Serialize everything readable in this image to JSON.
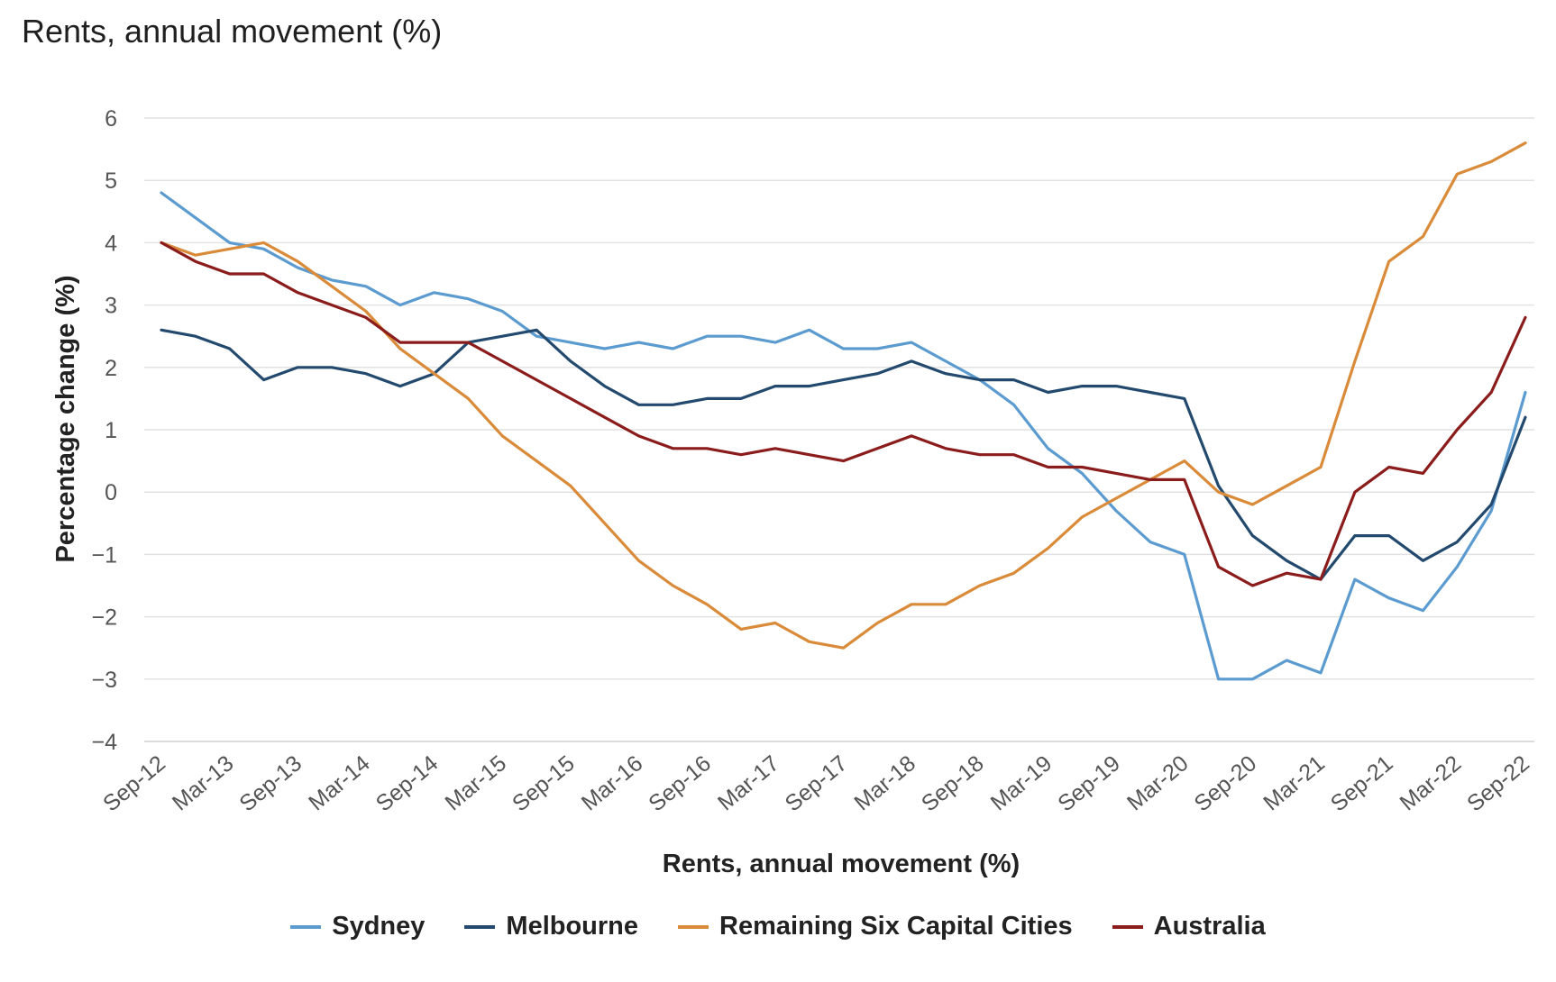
{
  "chart_data": {
    "type": "line",
    "title": "Rents, annual movement (%)",
    "xlabel": "Rents, annual movement (%)",
    "ylabel": "Percentage change (%)",
    "ylim": [
      -4,
      6
    ],
    "yticks": [
      6,
      5,
      4,
      3,
      2,
      1,
      0,
      -1,
      -2,
      -3,
      -4
    ],
    "ytick_labels": [
      "6",
      "5",
      "4",
      "3",
      "2",
      "1",
      "0",
      "−1",
      "−2",
      "−3",
      "−4"
    ],
    "x": [
      "Sep-12",
      "Dec-12",
      "Mar-13",
      "Jun-13",
      "Sep-13",
      "Dec-13",
      "Mar-14",
      "Jun-14",
      "Sep-14",
      "Dec-14",
      "Mar-15",
      "Jun-15",
      "Sep-15",
      "Dec-15",
      "Mar-16",
      "Jun-16",
      "Sep-16",
      "Dec-16",
      "Mar-17",
      "Jun-17",
      "Sep-17",
      "Dec-17",
      "Mar-18",
      "Jun-18",
      "Sep-18",
      "Dec-18",
      "Mar-19",
      "Jun-19",
      "Sep-19",
      "Dec-19",
      "Mar-20",
      "Jun-20",
      "Sep-20",
      "Dec-20",
      "Mar-21",
      "Jun-21",
      "Sep-21",
      "Dec-21",
      "Mar-22",
      "Jun-22",
      "Sep-22"
    ],
    "xtick_labels": [
      "Sep-12",
      "Mar-13",
      "Sep-13",
      "Mar-14",
      "Sep-14",
      "Mar-15",
      "Sep-15",
      "Mar-16",
      "Sep-16",
      "Mar-17",
      "Sep-17",
      "Mar-18",
      "Sep-18",
      "Mar-19",
      "Sep-19",
      "Mar-20",
      "Sep-20",
      "Mar-21",
      "Sep-21",
      "Mar-22",
      "Sep-22"
    ],
    "grid": true,
    "legend_position": "bottom",
    "series": [
      {
        "name": "Sydney",
        "color": "#5b9bd0",
        "values": [
          4.8,
          4.4,
          4.0,
          3.9,
          3.6,
          3.4,
          3.3,
          3.0,
          3.2,
          3.1,
          2.9,
          2.5,
          2.4,
          2.3,
          2.4,
          2.3,
          2.5,
          2.5,
          2.4,
          2.6,
          2.3,
          2.3,
          2.4,
          2.1,
          1.8,
          1.4,
          0.7,
          0.3,
          -0.3,
          -0.8,
          -1.0,
          -3.0,
          -3.0,
          -2.7,
          -2.9,
          -1.4,
          -1.7,
          -1.9,
          -1.2,
          -0.3,
          1.6
        ]
      },
      {
        "name": "Melbourne",
        "color": "#234a6e",
        "values": [
          2.6,
          2.5,
          2.3,
          1.8,
          2.0,
          2.0,
          1.9,
          1.7,
          1.9,
          2.4,
          2.5,
          2.6,
          2.1,
          1.7,
          1.4,
          1.4,
          1.5,
          1.5,
          1.7,
          1.7,
          1.8,
          1.9,
          2.1,
          1.9,
          1.8,
          1.8,
          1.6,
          1.7,
          1.7,
          1.6,
          1.5,
          0.1,
          -0.7,
          -1.1,
          -1.4,
          -0.7,
          -0.7,
          -1.1,
          -0.8,
          -0.2,
          1.2
        ]
      },
      {
        "name": "Remaining Six Capital Cities",
        "color": "#d98b3a",
        "values": [
          4.0,
          3.8,
          3.9,
          4.0,
          3.7,
          3.3,
          2.9,
          2.3,
          1.9,
          1.5,
          0.9,
          0.5,
          0.1,
          -0.5,
          -1.1,
          -1.5,
          -1.8,
          -2.2,
          -2.1,
          -2.4,
          -2.5,
          -2.1,
          -1.8,
          -1.8,
          -1.5,
          -1.3,
          -0.9,
          -0.4,
          -0.1,
          0.2,
          0.5,
          0.0,
          -0.2,
          0.1,
          0.4,
          2.1,
          3.7,
          4.1,
          5.1,
          5.3,
          5.6
        ]
      },
      {
        "name": "Australia",
        "color": "#8b1c1c",
        "values": [
          4.0,
          3.7,
          3.5,
          3.5,
          3.2,
          3.0,
          2.8,
          2.4,
          2.4,
          2.4,
          2.1,
          1.8,
          1.5,
          1.2,
          0.9,
          0.7,
          0.7,
          0.6,
          0.7,
          0.6,
          0.5,
          0.7,
          0.9,
          0.7,
          0.6,
          0.6,
          0.4,
          0.4,
          0.3,
          0.2,
          0.2,
          -1.2,
          -1.5,
          -1.3,
          -1.4,
          0.0,
          0.4,
          0.3,
          1.0,
          1.6,
          2.8
        ]
      }
    ]
  }
}
